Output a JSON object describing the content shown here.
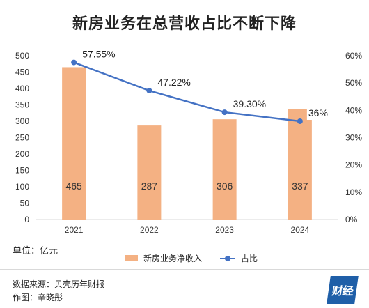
{
  "title": "新房业务在总营收占比不断下降",
  "unit_label": "单位：亿元",
  "legend": {
    "bar": "新房业务净收入",
    "line": "占比"
  },
  "source": "数据来源：贝壳历年财报",
  "author": "作图：辛晓彤",
  "logo_text": "财经",
  "colors": {
    "bar": "#F4B183",
    "line": "#4472C4",
    "axis": "#d9d9d9"
  },
  "chart_data": {
    "type": "bar+line",
    "categories": [
      "2021",
      "2022",
      "2023",
      "2024"
    ],
    "series": [
      {
        "name": "新房业务净收入",
        "type": "bar",
        "axis": "left",
        "values": [
          465,
          287,
          306,
          337
        ],
        "labels": [
          "465",
          "287",
          "306",
          "337"
        ]
      },
      {
        "name": "占比",
        "type": "line",
        "axis": "right",
        "values": [
          57.55,
          47.22,
          39.3,
          36
        ],
        "labels": [
          "57.55%",
          "47.22%",
          "39.30%",
          "36%"
        ]
      }
    ],
    "y_left": {
      "min": 0,
      "max": 500,
      "ticks": [
        "0",
        "50",
        "100",
        "150",
        "200",
        "250",
        "300",
        "350",
        "400",
        "450",
        "500"
      ]
    },
    "y_right": {
      "min": 0,
      "max": 60,
      "ticks": [
        "0%",
        "10%",
        "20%",
        "30%",
        "40%",
        "50%",
        "60%"
      ]
    },
    "grid": false,
    "legend_position": "bottom"
  }
}
